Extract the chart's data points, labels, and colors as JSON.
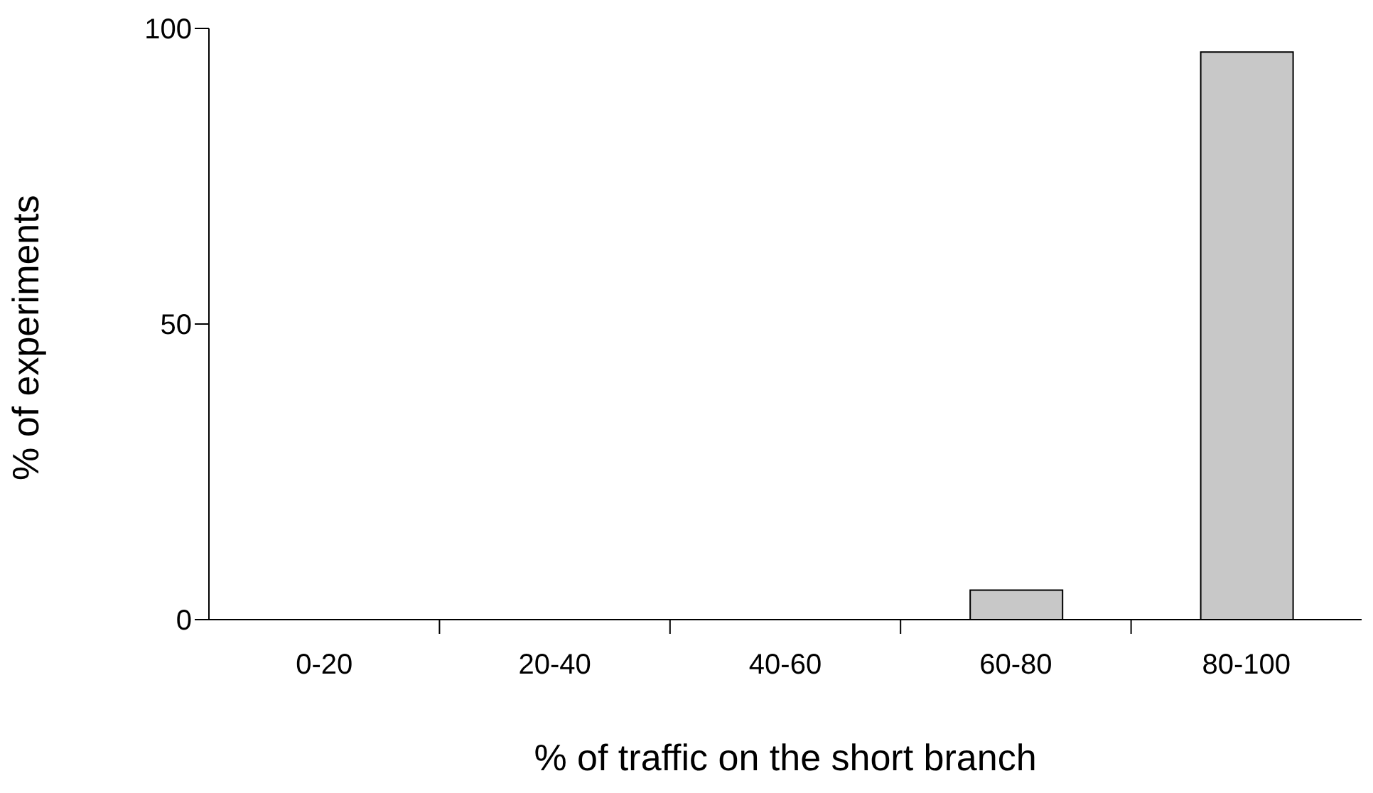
{
  "chart_data": {
    "type": "bar",
    "xlabel": "% of traffic on the short branch",
    "ylabel": "% of experiments",
    "categories": [
      "0-20",
      "20-40",
      "40-60",
      "60-80",
      "80-100"
    ],
    "values": [
      0,
      0,
      0,
      5,
      96
    ],
    "color": "#c8c8c8",
    "ylim": [
      0,
      100
    ],
    "yticks": [
      0,
      50,
      100
    ],
    "grid": false
  }
}
